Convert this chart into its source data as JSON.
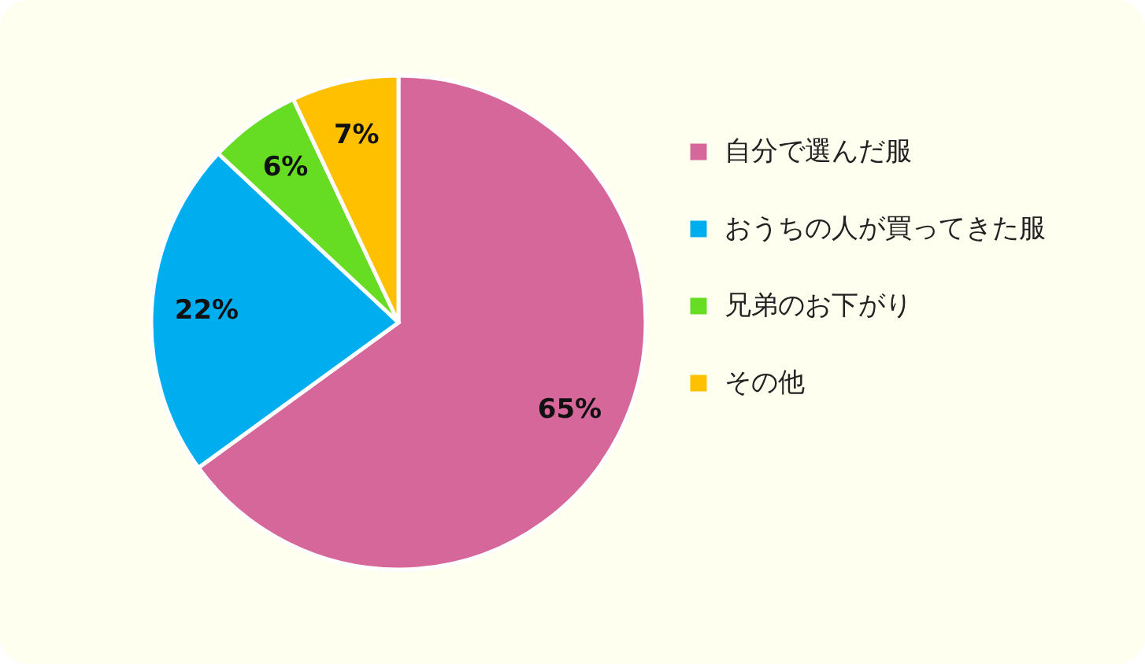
{
  "chart_data": {
    "type": "pie",
    "categories": [
      "自分で選んだ服",
      "おうちの人が買ってきた服",
      "兄弟のお下がり",
      "その他"
    ],
    "values": [
      65,
      22,
      6,
      7
    ],
    "colors": [
      "#d5679a",
      "#00aeef",
      "#66dd22",
      "#ffc000"
    ],
    "value_labels": [
      "65%",
      "22%",
      "6%",
      "7%"
    ],
    "legend": "right"
  }
}
